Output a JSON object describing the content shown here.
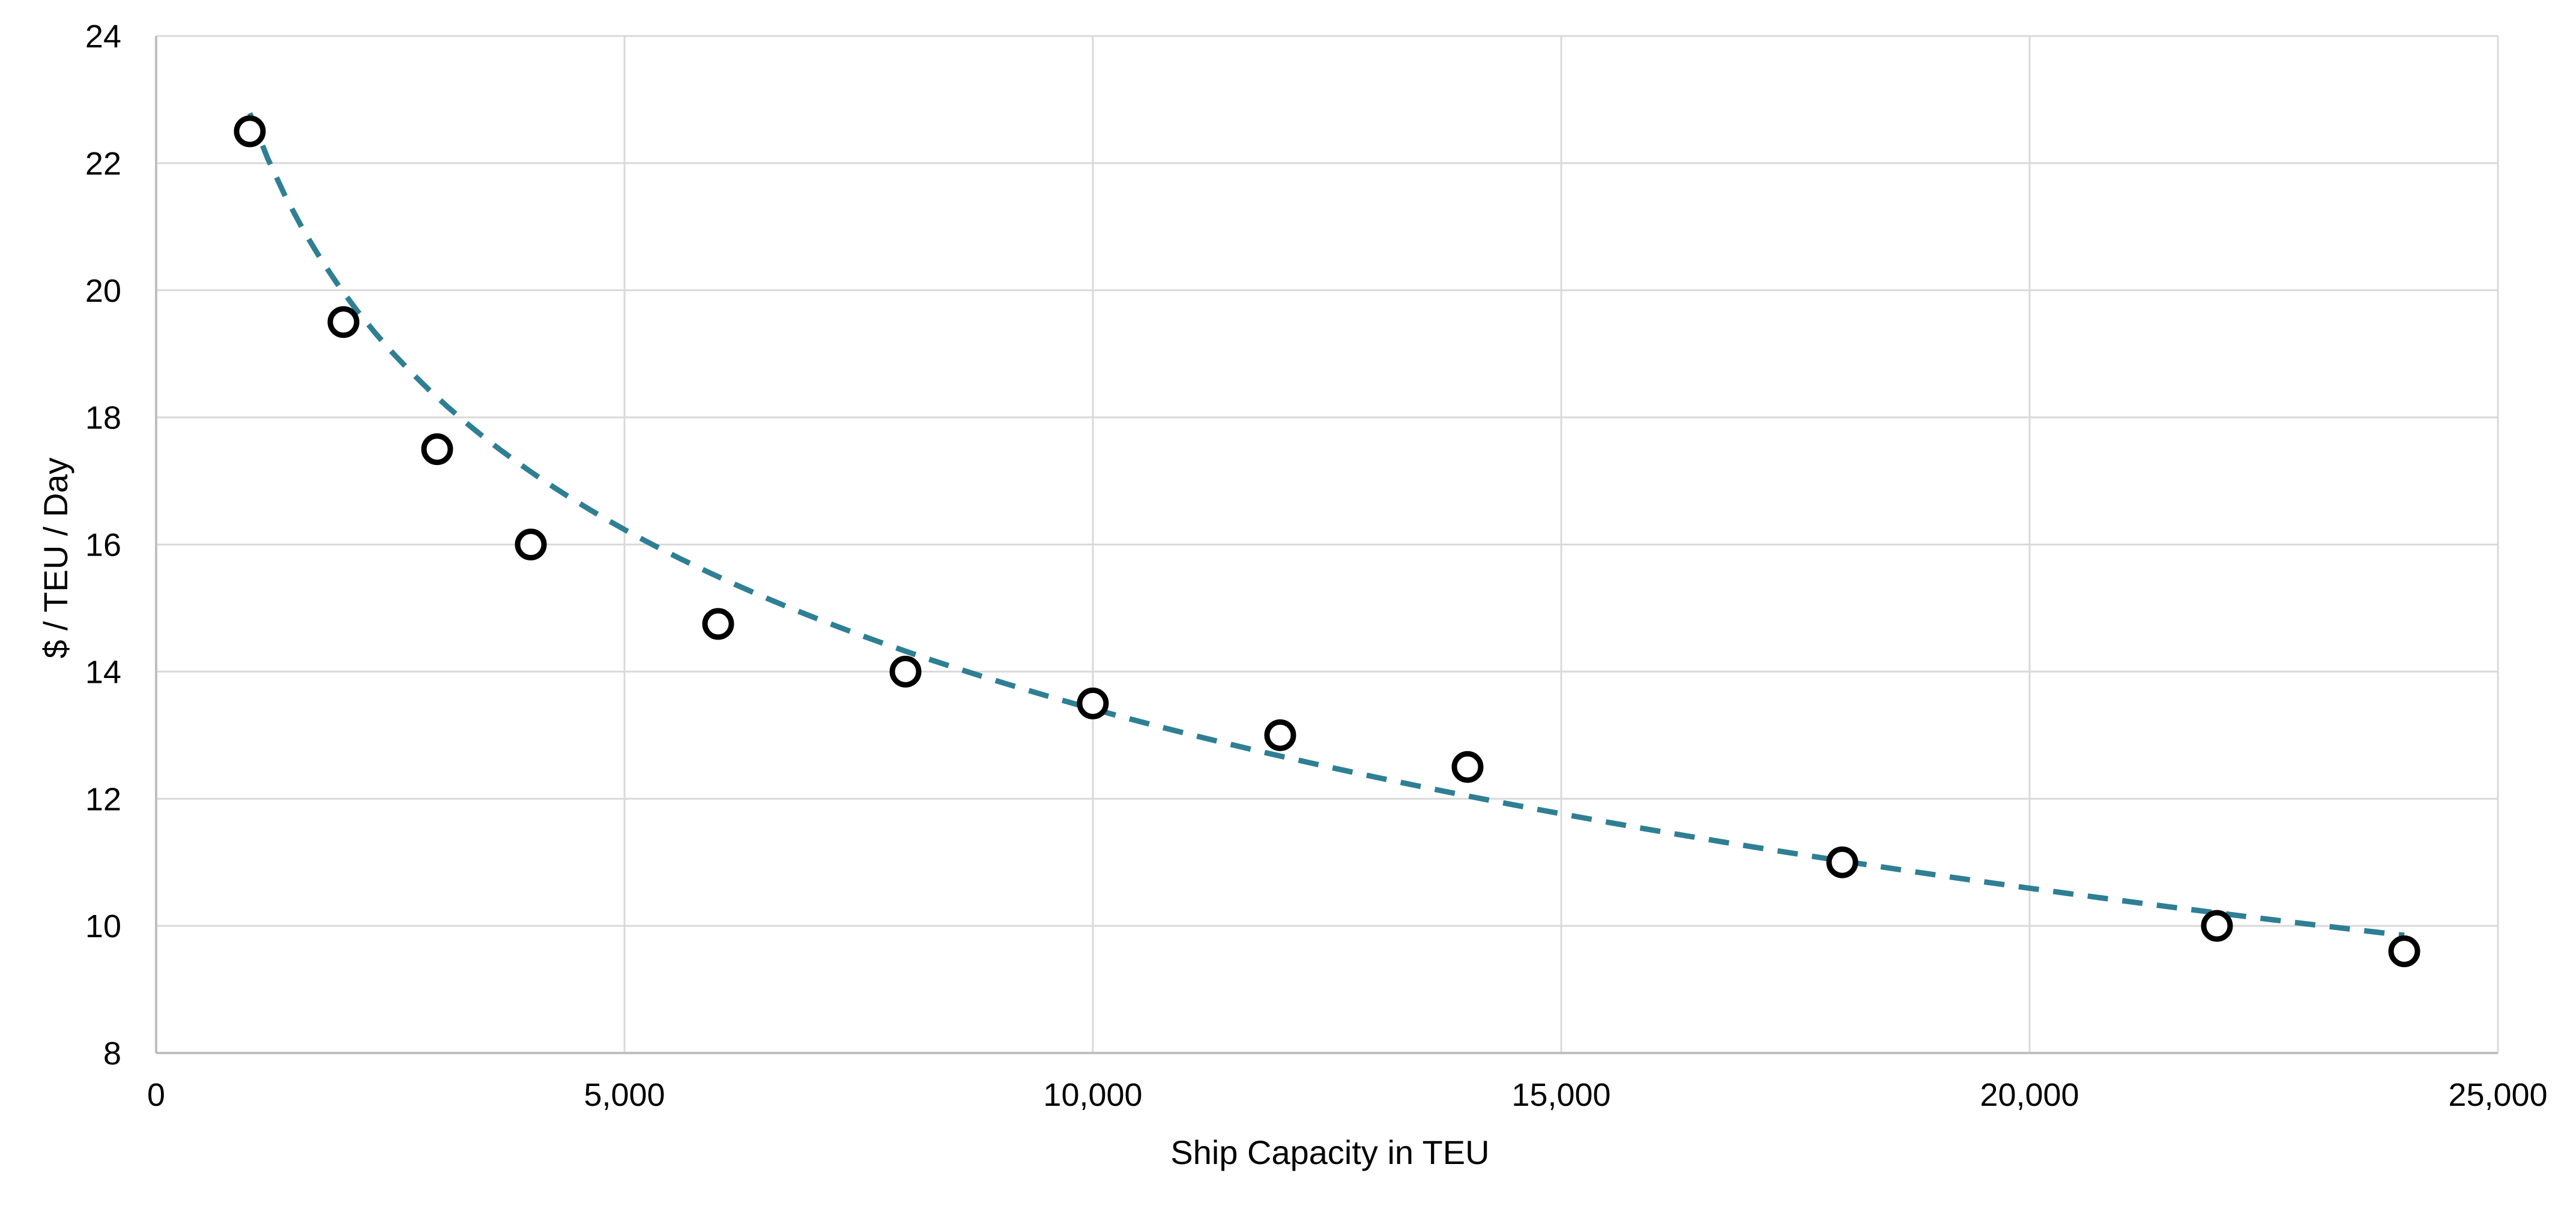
{
  "chart_data": {
    "type": "scatter",
    "title": "",
    "xlabel": "Ship Capacity in TEU",
    "ylabel": "$ / TEU / Day",
    "xlim": [
      0,
      25000
    ],
    "ylim": [
      8,
      24
    ],
    "x_ticks": [
      "0",
      "5,000",
      "10,000",
      "15,000",
      "20,000",
      "25,000"
    ],
    "y_ticks": [
      "8",
      "10",
      "12",
      "14",
      "16",
      "18",
      "20",
      "22",
      "24"
    ],
    "grid": true,
    "legend": "none",
    "series": [
      {
        "marker": "open-circle",
        "x": [
          1000,
          2000,
          3000,
          4000,
          6000,
          8000,
          10000,
          12000,
          14000,
          18000,
          22000,
          24000
        ],
        "y": [
          22.5,
          19.5,
          17.5,
          16.0,
          14.75,
          14.0,
          13.5,
          13.0,
          12.5,
          11.0,
          10.0,
          9.6
        ]
      }
    ],
    "trendline": {
      "style": "dashed",
      "fit": "logarithmic",
      "x": [
        1000,
        24000
      ],
      "equation_coefficients": {
        "a": -4.07,
        "b": 50.9
      }
    },
    "colors": {
      "trendline": "#2e7f94",
      "markers": "#000000",
      "grid": "#d9d9d9"
    }
  }
}
